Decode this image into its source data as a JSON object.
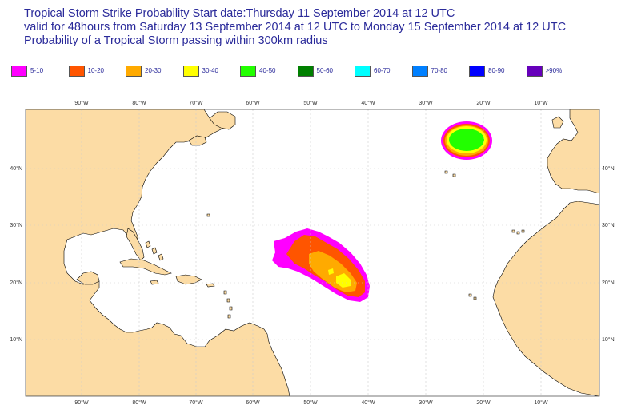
{
  "title": {
    "line1": "Tropical Storm Strike Probability Start date:Thursday 11 September 2014 at 12 UTC",
    "line2": "valid for 48hours from Saturday 13 September 2014 at 12 UTC to  Monday 15 September 2014 at 12 UTC",
    "line3": "Probability of a Tropical Storm passing within 300km radius"
  },
  "legend": [
    {
      "label": "5-10",
      "color": "#ff00ff"
    },
    {
      "label": "10-20",
      "color": "#ff5500"
    },
    {
      "label": "20-30",
      "color": "#ffaa00"
    },
    {
      "label": "30-40",
      "color": "#ffff00"
    },
    {
      "label": "40-50",
      "color": "#22ff00"
    },
    {
      "label": "50-60",
      "color": "#008000"
    },
    {
      "label": "60-70",
      "color": "#00ffff"
    },
    {
      "label": "70-80",
      "color": "#0080ff"
    },
    {
      "label": "80-90",
      "color": "#0000ff"
    },
    {
      "label": ">90%",
      "color": "#6600bb"
    }
  ],
  "map": {
    "land_color": "#fcdca5",
    "ocean_color": "#ffffff",
    "lon_labels": [
      "90°W",
      "80°W",
      "70°W",
      "60°W",
      "50°W",
      "40°W",
      "30°W",
      "20°W",
      "10°W"
    ],
    "lat_labels": [
      "40°N",
      "30°N",
      "20°N",
      "10°N"
    ]
  }
}
